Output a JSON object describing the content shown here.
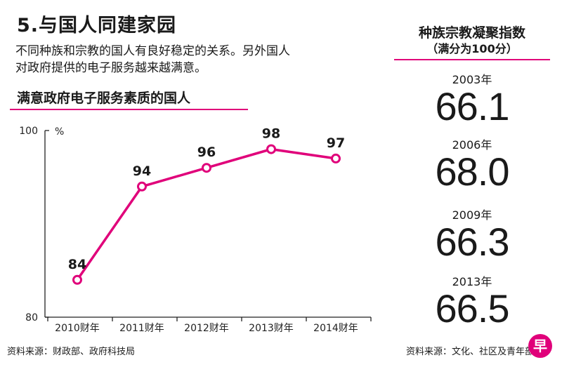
{
  "header": {
    "title": "5.与国人同建家园",
    "description_line1": "不同种族和宗教的国人有良好稳定的关系。另外国人",
    "description_line2": "对政府提供的电子服务越来越满意。"
  },
  "colors": {
    "accent": "#e0007a",
    "axis": "#222222"
  },
  "chart_data": {
    "type": "line",
    "title": "满意政府电子服务素质的国人",
    "categories": [
      "2010财年",
      "2011财年",
      "2012财年",
      "2013财年",
      "2014财年"
    ],
    "series": [
      {
        "values": [
          84,
          94,
          96,
          98,
          97
        ]
      }
    ],
    "yunit": "%",
    "ylim": [
      80,
      100
    ],
    "yticks": [
      80,
      100
    ],
    "grid": false
  },
  "index_panel": {
    "title": "种族宗教凝聚指数",
    "subtitle": "（满分为100分）",
    "entries": [
      {
        "year": "2003年",
        "value": "66.1"
      },
      {
        "year": "2006年",
        "value": "68.0"
      },
      {
        "year": "2009年",
        "value": "66.3"
      },
      {
        "year": "2013年",
        "value": "66.5"
      }
    ]
  },
  "footer": {
    "source_left": "资料来源：财政部、政府科技局",
    "source_right": "资料来源：文化、社区及青年部"
  },
  "logo": {
    "glyph": "早"
  }
}
